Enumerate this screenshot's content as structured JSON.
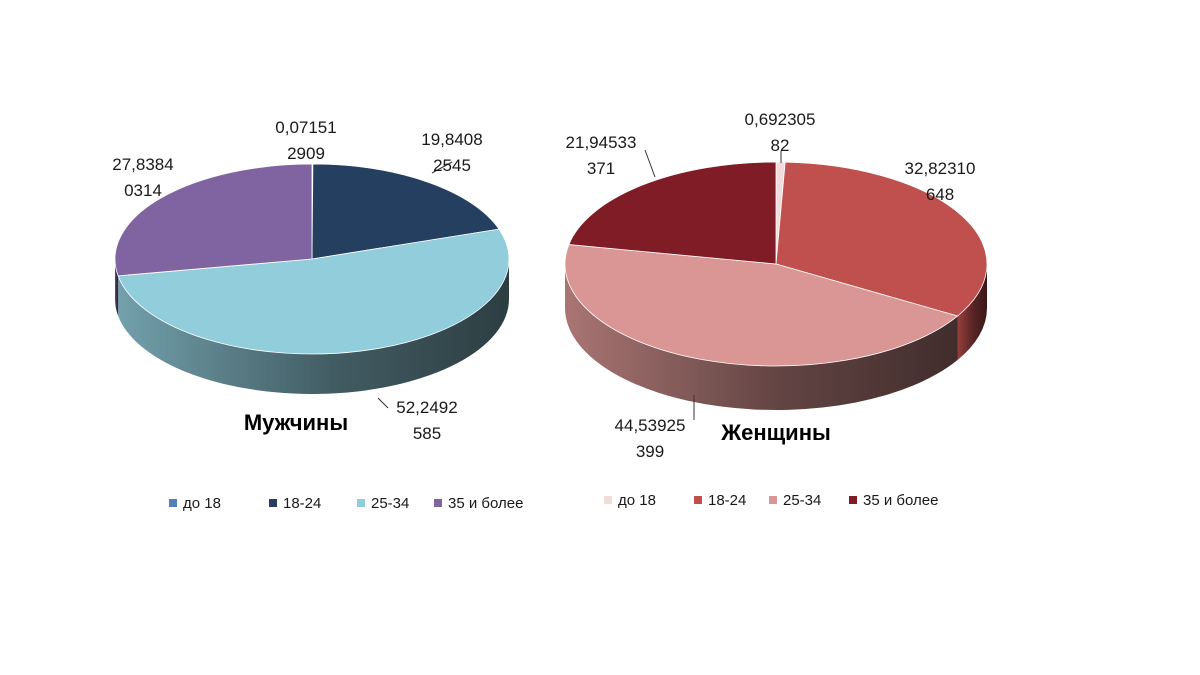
{
  "chart_data": [
    {
      "type": "pie",
      "title": "Мужчины",
      "categories": [
        "до 18",
        "18-24",
        "25-34",
        "35 и более"
      ],
      "values": [
        0.071512909,
        19.84082545,
        52.2492585,
        27.83840314
      ],
      "data_labels": [
        [
          "0,07151",
          "2909"
        ],
        [
          "19,8408",
          "2545"
        ],
        [
          "52,2492",
          "585"
        ],
        [
          "27,8384",
          "0314"
        ]
      ],
      "colors": [
        "#4f81bd",
        "#243f60",
        "#92cddc",
        "#8064a2"
      ],
      "legend_position": "bottom",
      "style": "3d"
    },
    {
      "type": "pie",
      "title": "Женщины",
      "categories": [
        "до 18",
        "18-24",
        "25-34",
        "35 и более"
      ],
      "values": [
        0.69230582,
        32.82310648,
        44.53925399,
        21.94533371
      ],
      "data_labels": [
        [
          "0,692305",
          "82"
        ],
        [
          "32,82310",
          "648"
        ],
        [
          "44,53925",
          "399"
        ],
        [
          "21,94533",
          "371"
        ]
      ],
      "colors": [
        "#f2dcdb",
        "#c0504d",
        "#d99694",
        "#7f1c26"
      ],
      "legend_position": "bottom",
      "style": "3d"
    }
  ]
}
